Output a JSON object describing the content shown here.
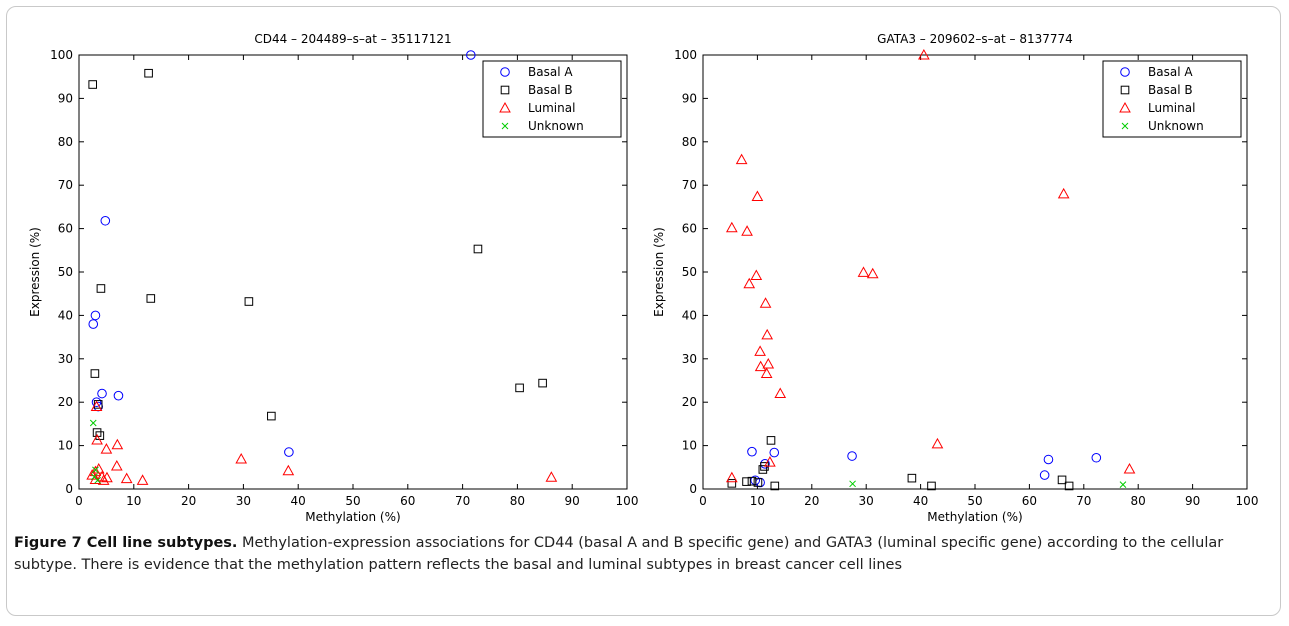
{
  "caption": {
    "label": "Figure 7 Cell line subtypes.",
    "text": " Methylation-expression associations for CD44 (basal A and B specific gene) and GATA3 (luminal specific gene) according to the cellular subtype. There is evidence that the methylation pattern reflects the basal and luminal subtypes in breast cancer cell lines"
  },
  "colors": {
    "Basal A": "#0000ff",
    "Basal B": "#000000",
    "Luminal": "#ff0000",
    "Unknown": "#00cc00"
  },
  "chart_data": [
    {
      "type": "scatter",
      "title": "CD44 – 204489–s–at – 35117121",
      "xlabel": "Methylation (%)",
      "ylabel": "Expression (%)",
      "xlim": [
        0,
        100
      ],
      "ylim": [
        0,
        100
      ],
      "xticks": [
        0,
        10,
        20,
        30,
        40,
        50,
        60,
        70,
        80,
        90,
        100
      ],
      "yticks": [
        0,
        10,
        20,
        30,
        40,
        50,
        60,
        70,
        80,
        90,
        100
      ],
      "grid": false,
      "legend": "top-right",
      "series": [
        {
          "name": "Basal A",
          "marker": "circle",
          "points": [
            [
              71.5,
              100
            ],
            [
              4.8,
              61.8
            ],
            [
              3.0,
              40
            ],
            [
              2.6,
              38
            ],
            [
              3.2,
              20
            ],
            [
              4.2,
              22
            ],
            [
              7.2,
              21.5
            ],
            [
              38.3,
              8.5
            ],
            [
              3.5,
              19
            ]
          ]
        },
        {
          "name": "Basal B",
          "marker": "square",
          "points": [
            [
              2.5,
              93.2
            ],
            [
              12.7,
              95.8
            ],
            [
              72.8,
              55.3
            ],
            [
              4.0,
              46.2
            ],
            [
              13.1,
              43.9
            ],
            [
              31.0,
              43.2
            ],
            [
              2.9,
              26.6
            ],
            [
              3.5,
              19.5
            ],
            [
              35.1,
              16.8
            ],
            [
              80.4,
              23.3
            ],
            [
              84.6,
              24.4
            ],
            [
              3.3,
              13.0
            ],
            [
              3.8,
              12.3
            ]
          ]
        },
        {
          "name": "Luminal",
          "marker": "triangle",
          "points": [
            [
              3.2,
              19.0
            ],
            [
              3.3,
              11.3
            ],
            [
              7.0,
              10.2
            ],
            [
              5.0,
              9.2
            ],
            [
              6.9,
              5.3
            ],
            [
              3.6,
              4.6
            ],
            [
              3.0,
              4.0
            ],
            [
              2.4,
              3.2
            ],
            [
              4.2,
              2.8
            ],
            [
              5.1,
              2.6
            ],
            [
              8.7,
              2.4
            ],
            [
              11.6,
              2.0
            ],
            [
              29.6,
              6.9
            ],
            [
              38.2,
              4.2
            ],
            [
              86.2,
              2.7
            ],
            [
              3.0,
              2.2
            ],
            [
              4.5,
              2.0
            ]
          ]
        },
        {
          "name": "Unknown",
          "marker": "x",
          "points": [
            [
              2.6,
              15.2
            ],
            [
              3.0,
              4.4
            ],
            [
              3.4,
              2.0
            ],
            [
              2.8,
              2.8
            ]
          ]
        }
      ]
    },
    {
      "type": "scatter",
      "title": "GATA3 – 209602–s–at – 8137774",
      "xlabel": "Methylation (%)",
      "ylabel": "Expression (%)",
      "xlim": [
        0,
        100
      ],
      "ylim": [
        0,
        100
      ],
      "xticks": [
        0,
        10,
        20,
        30,
        40,
        50,
        60,
        70,
        80,
        90,
        100
      ],
      "yticks": [
        0,
        10,
        20,
        30,
        40,
        50,
        60,
        70,
        80,
        90,
        100
      ],
      "grid": false,
      "legend": "top-right",
      "series": [
        {
          "name": "Basal A",
          "marker": "circle",
          "points": [
            [
              9.0,
              8.6
            ],
            [
              13.1,
              8.4
            ],
            [
              11.4,
              5.8
            ],
            [
              27.4,
              7.6
            ],
            [
              63.5,
              6.8
            ],
            [
              72.3,
              7.2
            ],
            [
              62.8,
              3.2
            ],
            [
              9.6,
              2.0
            ],
            [
              10.5,
              1.5
            ]
          ]
        },
        {
          "name": "Basal B",
          "marker": "square",
          "points": [
            [
              12.5,
              11.2
            ],
            [
              11.3,
              5.2
            ],
            [
              11.0,
              4.5
            ],
            [
              5.3,
              1.3
            ],
            [
              8.0,
              1.7
            ],
            [
              9.0,
              1.8
            ],
            [
              10.1,
              1.5
            ],
            [
              13.2,
              0.7
            ],
            [
              38.4,
              2.5
            ],
            [
              42.0,
              0.7
            ],
            [
              66.0,
              2.1
            ],
            [
              67.3,
              0.7
            ]
          ]
        },
        {
          "name": "Luminal",
          "marker": "triangle",
          "points": [
            [
              40.6,
              100
            ],
            [
              7.1,
              75.9
            ],
            [
              10.0,
              67.4
            ],
            [
              66.3,
              68.0
            ],
            [
              5.3,
              60.2
            ],
            [
              8.1,
              59.4
            ],
            [
              9.8,
              49.2
            ],
            [
              8.5,
              47.3
            ],
            [
              29.5,
              49.9
            ],
            [
              31.2,
              49.6
            ],
            [
              11.5,
              42.8
            ],
            [
              11.8,
              35.5
            ],
            [
              10.5,
              31.7
            ],
            [
              12.0,
              28.8
            ],
            [
              10.6,
              28.2
            ],
            [
              11.7,
              26.6
            ],
            [
              14.2,
              22.0
            ],
            [
              43.1,
              10.4
            ],
            [
              78.4,
              4.6
            ],
            [
              12.3,
              6.2
            ],
            [
              5.3,
              2.6
            ]
          ]
        },
        {
          "name": "Unknown",
          "marker": "x",
          "points": [
            [
              27.5,
              1.2
            ],
            [
              77.2,
              1.0
            ]
          ]
        }
      ]
    }
  ]
}
